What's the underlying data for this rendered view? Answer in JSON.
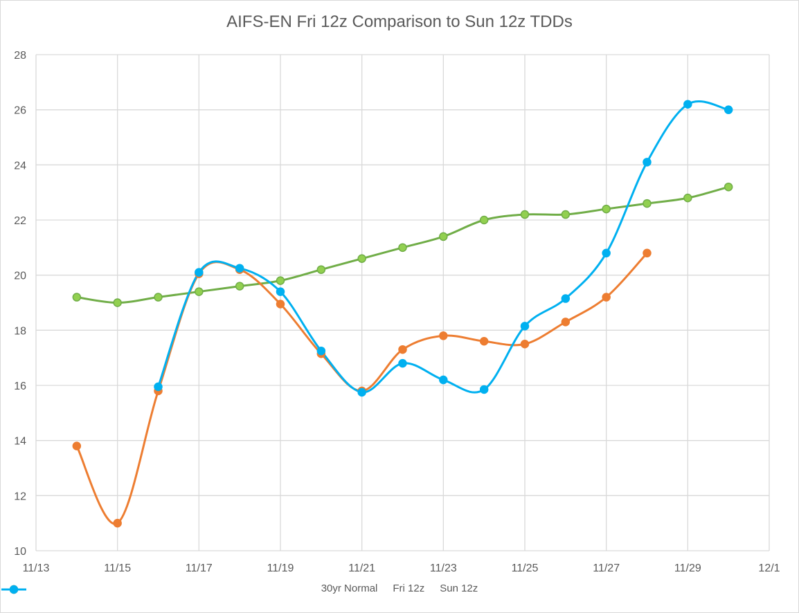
{
  "chart_data": {
    "type": "line",
    "title": "AIFS-EN Fri 12z Comparison to Sun 12z TDDs",
    "xlabel": "",
    "ylabel": "",
    "ylim": [
      10,
      28
    ],
    "yticks": [
      "10",
      "12",
      "14",
      "16",
      "18",
      "20",
      "22",
      "24",
      "26",
      "28"
    ],
    "xticks": [
      "11/13",
      "11/15",
      "11/17",
      "11/19",
      "11/21",
      "11/23",
      "11/25",
      "11/27",
      "11/29",
      "12/1"
    ],
    "grid": true,
    "smooth": true,
    "legend_position": "bottom",
    "series": [
      {
        "name": "30yr Normal",
        "color": "#70ad47",
        "marker_fill": "#92d050",
        "x": [
          "11/14",
          "11/15",
          "11/16",
          "11/17",
          "11/18",
          "11/19",
          "11/20",
          "11/21",
          "11/22",
          "11/23",
          "11/24",
          "11/25",
          "11/26",
          "11/27",
          "11/28",
          "11/29",
          "11/30"
        ],
        "values": [
          19.2,
          19.0,
          19.2,
          19.4,
          19.6,
          19.8,
          20.2,
          20.6,
          21.0,
          21.4,
          22.0,
          22.2,
          22.2,
          22.4,
          22.6,
          22.8,
          23.2
        ]
      },
      {
        "name": "Fri 12z",
        "color": "#ed7d31",
        "marker_fill": "#ed7d31",
        "x": [
          "11/14",
          "11/15",
          "11/16",
          "11/17",
          "11/18",
          "11/19",
          "11/20",
          "11/21",
          "11/22",
          "11/23",
          "11/24",
          "11/25",
          "11/26",
          "11/27",
          "11/28"
        ],
        "values": [
          13.8,
          11.0,
          15.8,
          20.05,
          20.2,
          18.95,
          17.15,
          15.8,
          17.3,
          17.8,
          17.6,
          17.5,
          18.3,
          19.2,
          20.8
        ]
      },
      {
        "name": "Sun 12z",
        "color": "#00b0f0",
        "marker_fill": "#00b0f0",
        "x": [
          "11/16",
          "11/17",
          "11/18",
          "11/19",
          "11/20",
          "11/21",
          "11/22",
          "11/23",
          "11/24",
          "11/25",
          "11/26",
          "11/27",
          "11/28",
          "11/29",
          "11/30"
        ],
        "values": [
          15.95,
          20.1,
          20.25,
          19.4,
          17.25,
          15.75,
          16.8,
          16.2,
          15.85,
          18.15,
          19.15,
          20.8,
          24.1,
          26.2,
          26.0
        ]
      }
    ]
  }
}
